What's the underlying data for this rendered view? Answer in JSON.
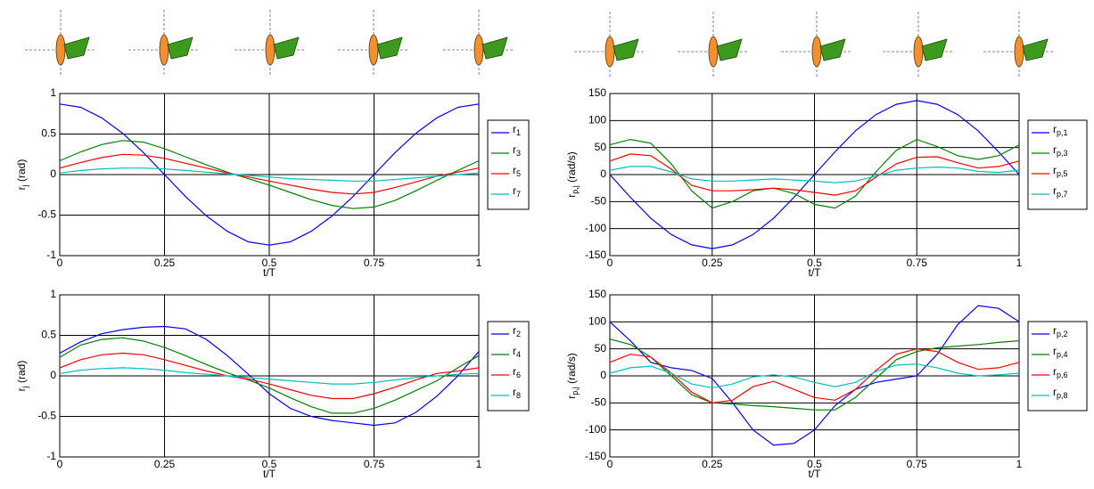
{
  "chart_data": [
    {
      "type": "line",
      "ylabel": "r_j (rad)",
      "xlabel": "t/T",
      "legend": "outside-right",
      "grid": true,
      "x": [
        0,
        0.05,
        0.1,
        0.15,
        0.2,
        0.25,
        0.3,
        0.35,
        0.4,
        0.45,
        0.5,
        0.55,
        0.6,
        0.65,
        0.7,
        0.75,
        0.8,
        0.85,
        0.9,
        0.95,
        1
      ],
      "xlim": [
        0,
        1
      ],
      "xticks": [
        0,
        0.25,
        0.5,
        0.75,
        1
      ],
      "ylim": [
        -1,
        1
      ],
      "yticks": [
        -1,
        -0.5,
        0,
        0.5,
        1
      ],
      "series": [
        {
          "name": "r_1",
          "color": "#0000ff",
          "values": [
            0.87,
            0.83,
            0.7,
            0.51,
            0.27,
            0,
            -0.27,
            -0.51,
            -0.7,
            -0.83,
            -0.87,
            -0.83,
            -0.7,
            -0.51,
            -0.27,
            0,
            0.27,
            0.51,
            0.7,
            0.83,
            0.87
          ]
        },
        {
          "name": "r_3",
          "color": "#008000",
          "values": [
            0.17,
            0.28,
            0.37,
            0.42,
            0.4,
            0.32,
            0.22,
            0.12,
            0.03,
            -0.05,
            -0.13,
            -0.22,
            -0.31,
            -0.38,
            -0.42,
            -0.4,
            -0.32,
            -0.2,
            -0.07,
            0.05,
            0.17
          ]
        },
        {
          "name": "r_5",
          "color": "#ff0000",
          "values": [
            0.08,
            0.15,
            0.21,
            0.25,
            0.24,
            0.2,
            0.14,
            0.08,
            0.02,
            -0.03,
            -0.08,
            -0.13,
            -0.18,
            -0.22,
            -0.24,
            -0.22,
            -0.16,
            -0.09,
            -0.02,
            0.03,
            0.08
          ]
        },
        {
          "name": "r_7",
          "color": "#00bfbf",
          "values": [
            0.02,
            0.05,
            0.07,
            0.08,
            0.08,
            0.07,
            0.05,
            0.03,
            0.01,
            -0.01,
            -0.03,
            -0.05,
            -0.06,
            -0.07,
            -0.08,
            -0.08,
            -0.06,
            -0.04,
            -0.02,
            0,
            0.02
          ]
        }
      ]
    },
    {
      "type": "line",
      "ylabel": "r_j (rad)",
      "xlabel": "t/T",
      "legend": "outside-right",
      "grid": true,
      "x": [
        0,
        0.05,
        0.1,
        0.15,
        0.2,
        0.25,
        0.3,
        0.35,
        0.4,
        0.45,
        0.5,
        0.55,
        0.6,
        0.65,
        0.7,
        0.75,
        0.8,
        0.85,
        0.9,
        0.95,
        1
      ],
      "xlim": [
        0,
        1
      ],
      "xticks": [
        0,
        0.25,
        0.5,
        0.75,
        1
      ],
      "ylim": [
        -1,
        1
      ],
      "yticks": [
        -1,
        -0.5,
        0,
        0.5,
        1
      ],
      "series": [
        {
          "name": "r_2",
          "color": "#0000ff",
          "values": [
            0.28,
            0.42,
            0.52,
            0.57,
            0.6,
            0.61,
            0.58,
            0.45,
            0.25,
            0.02,
            -0.22,
            -0.4,
            -0.5,
            -0.55,
            -0.58,
            -0.61,
            -0.58,
            -0.45,
            -0.25,
            0,
            0.3
          ]
        },
        {
          "name": "r_4",
          "color": "#008000",
          "values": [
            0.23,
            0.38,
            0.45,
            0.47,
            0.43,
            0.35,
            0.25,
            0.14,
            0.04,
            -0.05,
            -0.15,
            -0.27,
            -0.38,
            -0.46,
            -0.46,
            -0.4,
            -0.3,
            -0.18,
            -0.06,
            0.1,
            0.25
          ]
        },
        {
          "name": "r_6",
          "color": "#ff0000",
          "values": [
            0.1,
            0.2,
            0.26,
            0.28,
            0.26,
            0.2,
            0.13,
            0.06,
            0,
            -0.04,
            -0.1,
            -0.17,
            -0.24,
            -0.28,
            -0.28,
            -0.22,
            -0.14,
            -0.05,
            0.03,
            0.06,
            0.1
          ]
        },
        {
          "name": "r_8",
          "color": "#00bfbf",
          "values": [
            0.03,
            0.07,
            0.09,
            0.1,
            0.09,
            0.07,
            0.04,
            0.02,
            0,
            -0.02,
            -0.04,
            -0.06,
            -0.08,
            -0.1,
            -0.1,
            -0.08,
            -0.05,
            -0.02,
            0,
            0.02,
            0.03
          ]
        }
      ]
    },
    {
      "type": "line",
      "ylabel": "r_p,j (rad/s)",
      "xlabel": "t/T",
      "legend": "outside-right",
      "grid": true,
      "x": [
        0,
        0.05,
        0.1,
        0.15,
        0.2,
        0.25,
        0.3,
        0.35,
        0.4,
        0.45,
        0.5,
        0.55,
        0.6,
        0.65,
        0.7,
        0.75,
        0.8,
        0.85,
        0.9,
        0.95,
        1
      ],
      "xlim": [
        0,
        1
      ],
      "xticks": [
        0,
        0.25,
        0.5,
        0.75,
        1
      ],
      "ylim": [
        -150,
        150
      ],
      "yticks": [
        -150,
        -100,
        -50,
        0,
        50,
        100,
        150
      ],
      "series": [
        {
          "name": "r_p,1",
          "color": "#0000ff",
          "values": [
            0,
            -42,
            -81,
            -111,
            -130,
            -137,
            -130,
            -111,
            -81,
            -42,
            0,
            42,
            81,
            111,
            130,
            137,
            130,
            111,
            81,
            42,
            0
          ]
        },
        {
          "name": "r_p,3",
          "color": "#008000",
          "values": [
            55,
            65,
            58,
            20,
            -30,
            -62,
            -50,
            -30,
            -25,
            -35,
            -55,
            -62,
            -40,
            5,
            45,
            65,
            52,
            35,
            28,
            35,
            55
          ]
        },
        {
          "name": "r_p,5",
          "color": "#ff0000",
          "values": [
            25,
            38,
            35,
            10,
            -20,
            -30,
            -30,
            -28,
            -25,
            -28,
            -33,
            -38,
            -30,
            -5,
            20,
            32,
            33,
            22,
            12,
            15,
            25
          ]
        },
        {
          "name": "r_p,7",
          "color": "#00bfbf",
          "values": [
            8,
            15,
            15,
            5,
            -8,
            -12,
            -12,
            -10,
            -8,
            -10,
            -12,
            -15,
            -12,
            -3,
            8,
            12,
            14,
            12,
            6,
            4,
            8
          ]
        }
      ]
    },
    {
      "type": "line",
      "ylabel": "r_p,j (rad/s)",
      "xlabel": "t/T",
      "legend": "outside-right",
      "grid": true,
      "x": [
        0,
        0.05,
        0.1,
        0.15,
        0.2,
        0.25,
        0.3,
        0.35,
        0.4,
        0.45,
        0.5,
        0.55,
        0.6,
        0.65,
        0.7,
        0.75,
        0.8,
        0.85,
        0.9,
        0.95,
        1
      ],
      "xlim": [
        0,
        1
      ],
      "xticks": [
        0,
        0.25,
        0.5,
        0.75,
        1
      ],
      "ylim": [
        -150,
        150
      ],
      "yticks": [
        -150,
        -100,
        -50,
        0,
        50,
        100,
        150
      ],
      "series": [
        {
          "name": "r_p,2",
          "color": "#0000ff",
          "values": [
            100,
            65,
            25,
            15,
            10,
            -5,
            -50,
            -100,
            -128,
            -125,
            -100,
            -55,
            -25,
            -12,
            -6,
            0,
            40,
            95,
            130,
            125,
            100
          ]
        },
        {
          "name": "r_p,4",
          "color": "#008000",
          "values": [
            68,
            58,
            35,
            0,
            -35,
            -50,
            -52,
            -55,
            -57,
            -60,
            -63,
            -63,
            -40,
            -5,
            30,
            45,
            52,
            55,
            58,
            62,
            65
          ]
        },
        {
          "name": "r_p,6",
          "color": "#ff0000",
          "values": [
            25,
            40,
            35,
            5,
            -30,
            -50,
            -45,
            -20,
            -10,
            -25,
            -40,
            -45,
            -25,
            10,
            40,
            50,
            45,
            25,
            12,
            15,
            25
          ]
        },
        {
          "name": "r_p,8",
          "color": "#00bfbf",
          "values": [
            5,
            15,
            18,
            5,
            -15,
            -22,
            -15,
            -2,
            2,
            -2,
            -12,
            -20,
            -12,
            8,
            20,
            22,
            15,
            5,
            0,
            2,
            5
          ]
        }
      ]
    }
  ]
}
